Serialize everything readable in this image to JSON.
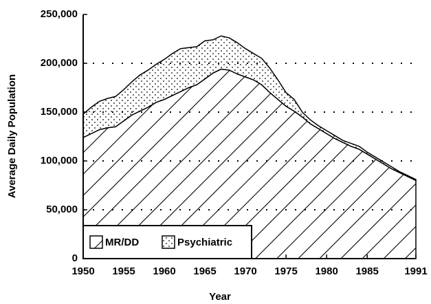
{
  "chart_data": {
    "type": "stacked_area",
    "xlabel": "Year",
    "ylabel": "Average Daily Population",
    "x": [
      1950,
      1951,
      1952,
      1953,
      1954,
      1955,
      1956,
      1957,
      1958,
      1959,
      1960,
      1961,
      1962,
      1963,
      1964,
      1965,
      1966,
      1967,
      1968,
      1969,
      1970,
      1971,
      1972,
      1973,
      1974,
      1975,
      1976,
      1977,
      1978,
      1979,
      1980,
      1981,
      1982,
      1983,
      1984,
      1985,
      1986,
      1987,
      1988,
      1989,
      1990,
      1991
    ],
    "series": [
      {
        "name": "MR/DD",
        "color": "#000000",
        "pattern": "hatch",
        "values": [
          124000,
          128000,
          132000,
          134000,
          135000,
          141000,
          147000,
          151000,
          155000,
          160000,
          163000,
          167000,
          171000,
          175000,
          178000,
          184000,
          190000,
          194000,
          193000,
          189000,
          186000,
          183000,
          178000,
          170000,
          163000,
          156000,
          151000,
          145000,
          138000,
          133000,
          128000,
          123000,
          119000,
          115000,
          112000,
          107000,
          102000,
          97000,
          92000,
          88000,
          84000,
          80000
        ]
      },
      {
        "name": "Psychiatric",
        "color": "#000000",
        "pattern": "dots",
        "values": [
          24000,
          27000,
          29000,
          30000,
          31000,
          32000,
          34000,
          37000,
          38000,
          39000,
          41000,
          43000,
          44000,
          41000,
          39000,
          39000,
          34000,
          34000,
          33000,
          32000,
          29000,
          27000,
          27000,
          25000,
          20000,
          14000,
          12000,
          5000,
          4000,
          3000,
          3000,
          3000,
          2000,
          3000,
          3000,
          2000,
          2000,
          2000,
          2000,
          1000,
          1000,
          1000
        ]
      }
    ],
    "xlim": [
      1950,
      1991
    ],
    "xticks": [
      1950,
      1955,
      1960,
      1965,
      1970,
      1975,
      1980,
      1985,
      1991
    ],
    "ylim": [
      0,
      250000
    ],
    "yticks": [
      0,
      {
        "value": 50000,
        "label": "50,000"
      },
      {
        "value": 100000,
        "label": "100,000"
      },
      {
        "value": 150000,
        "label": "150,000"
      },
      {
        "value": 200000,
        "label": "200,000"
      },
      {
        "value": 250000,
        "label": "250,000"
      }
    ],
    "grid": true,
    "legend": "lower left"
  }
}
